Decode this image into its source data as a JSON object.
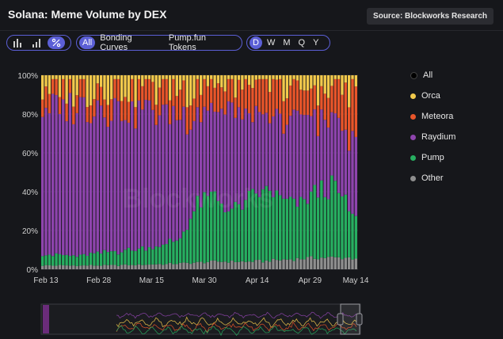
{
  "title": "Solana: Meme Volume by DEX",
  "source_label": "Source: Blockworks Research",
  "watermark": "Blockworks",
  "toolbar": {
    "chart_type_icons": [
      "bar-chart-icon",
      "sorted-bar-icon",
      "percent-icon"
    ],
    "filters": [
      "All",
      "Bonding Curves",
      "Pump.fun Tokens"
    ],
    "active_filter": "All",
    "intervals": [
      "D",
      "W",
      "M",
      "Q",
      "Y"
    ],
    "active_interval": "D"
  },
  "legend": [
    {
      "label": "All",
      "color": "#000000"
    },
    {
      "label": "Orca",
      "color": "#f2c94c"
    },
    {
      "label": "Meteora",
      "color": "#e8552a"
    },
    {
      "label": "Raydium",
      "color": "#8e44ad"
    },
    {
      "label": "Pump",
      "color": "#27ae60"
    },
    {
      "label": "Other",
      "color": "#8e8e8e"
    }
  ],
  "chart_data": {
    "type": "bar",
    "stacked": true,
    "normalized": true,
    "x_range": [
      "Feb 13",
      "May 14"
    ],
    "x_ticks": [
      "Feb 13",
      "Feb 28",
      "Mar 15",
      "Mar 30",
      "Apr 14",
      "Apr 29",
      "May 14"
    ],
    "y_ticks": [
      "0%",
      "20%",
      "40%",
      "60%",
      "80%",
      "100%"
    ],
    "ylim": [
      0,
      100
    ],
    "series": [
      {
        "name": "Other",
        "color": "#8e8e8e",
        "anchors": [
          [
            0,
            2
          ],
          [
            20,
            2
          ],
          [
            40,
            3
          ],
          [
            50,
            4
          ],
          [
            60,
            4
          ],
          [
            70,
            5
          ],
          [
            80,
            6
          ],
          [
            91,
            6
          ]
        ]
      },
      {
        "name": "Pump",
        "color": "#27ae60",
        "anchors": [
          [
            0,
            6
          ],
          [
            10,
            5
          ],
          [
            20,
            7
          ],
          [
            30,
            9
          ],
          [
            35,
            10
          ],
          [
            40,
            13
          ],
          [
            45,
            30
          ],
          [
            50,
            34
          ],
          [
            55,
            26
          ],
          [
            60,
            32
          ],
          [
            65,
            38
          ],
          [
            70,
            30
          ],
          [
            75,
            28
          ],
          [
            80,
            35
          ],
          [
            85,
            36
          ],
          [
            88,
            28
          ],
          [
            91,
            20
          ]
        ]
      },
      {
        "name": "Raydium",
        "color": "#8e44ad",
        "anchors": [
          [
            0,
            78
          ],
          [
            10,
            80
          ],
          [
            20,
            77
          ],
          [
            30,
            73
          ],
          [
            35,
            70
          ],
          [
            40,
            64
          ],
          [
            45,
            48
          ],
          [
            50,
            44
          ],
          [
            55,
            52
          ],
          [
            60,
            42
          ],
          [
            65,
            36
          ],
          [
            70,
            40
          ],
          [
            75,
            44
          ],
          [
            80,
            38
          ],
          [
            85,
            34
          ],
          [
            88,
            34
          ],
          [
            91,
            42
          ]
        ]
      },
      {
        "name": "Meteora",
        "color": "#e8552a",
        "anchors": [
          [
            0,
            10
          ],
          [
            10,
            9
          ],
          [
            20,
            10
          ],
          [
            30,
            12
          ],
          [
            40,
            14
          ],
          [
            45,
            13
          ],
          [
            50,
            14
          ],
          [
            55,
            12
          ],
          [
            60,
            15
          ],
          [
            65,
            18
          ],
          [
            70,
            16
          ],
          [
            75,
            14
          ],
          [
            80,
            14
          ],
          [
            85,
            16
          ],
          [
            88,
            22
          ],
          [
            91,
            26
          ]
        ]
      },
      {
        "name": "Orca",
        "color": "#f2c94c"
      }
    ]
  }
}
